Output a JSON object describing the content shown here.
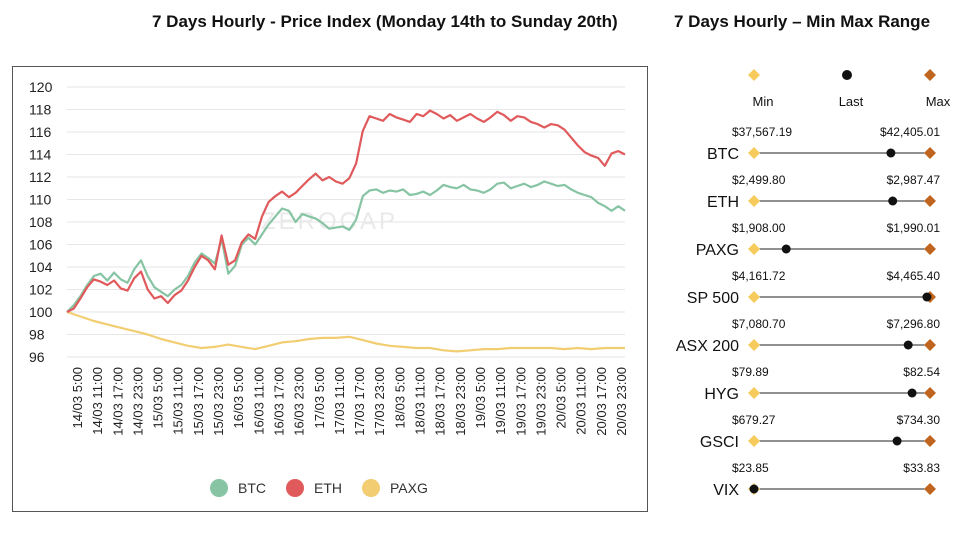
{
  "titles": {
    "left": "7 Days Hourly - Price Index (Monday 14th to Sunday 20th)",
    "right": "7 Days Hourly – Min Max Range"
  },
  "watermark": "ZEROCAP",
  "colors": {
    "btc": "#87c4a4",
    "eth": "#e05a5c",
    "paxg": "#f2cd72",
    "min_marker": "#f6cb5c",
    "last_marker": "#111111",
    "max_marker": "#c0651f",
    "grid": "#e6e6e6"
  },
  "chart_data": [
    {
      "type": "line",
      "title": "7 Days Hourly - Price Index (Monday 14th to Sunday 20th)",
      "xlabel": "",
      "ylabel": "",
      "ylim": [
        96,
        120
      ],
      "yticks": [
        96,
        98,
        100,
        102,
        104,
        106,
        108,
        110,
        112,
        114,
        116,
        118,
        120
      ],
      "x_tick_labels": [
        "14/03 5:00",
        "14/03 11:00",
        "14/03 17:00",
        "14/03 23:00",
        "15/03 5:00",
        "15/03 11:00",
        "15/03 17:00",
        "15/03 23:00",
        "16/03 5:00",
        "16/03 11:00",
        "16/03 17:00",
        "16/03 23:00",
        "17/03 5:00",
        "17/03 11:00",
        "17/03 17:00",
        "17/03 23:00",
        "18/03 5:00",
        "18/03 11:00",
        "18/03 17:00",
        "18/03 23:00",
        "19/03 5:00",
        "19/03 11:00",
        "19/03 17:00",
        "19/03 23:00",
        "20/03 5:00",
        "20/03 11:00",
        "20/03 17:00",
        "20/03 23:00"
      ],
      "x_hours_range": [
        0,
        166
      ],
      "legend_position": "bottom",
      "series": [
        {
          "name": "BTC",
          "x_hours": [
            0,
            2,
            4,
            6,
            8,
            10,
            12,
            14,
            16,
            18,
            20,
            22,
            24,
            26,
            28,
            30,
            32,
            34,
            36,
            38,
            40,
            42,
            44,
            46,
            48,
            50,
            52,
            54,
            56,
            58,
            60,
            62,
            64,
            66,
            68,
            70,
            72,
            74,
            76,
            78,
            80,
            82,
            84,
            86,
            88,
            90,
            92,
            94,
            96,
            98,
            100,
            102,
            104,
            106,
            108,
            110,
            112,
            114,
            116,
            118,
            120,
            122,
            124,
            126,
            128,
            130,
            132,
            134,
            136,
            138,
            140,
            142,
            144,
            146,
            148,
            150,
            152,
            154,
            156,
            158,
            160,
            162,
            164,
            166
          ],
          "values": [
            100.0,
            100.6,
            101.4,
            102.4,
            103.2,
            103.4,
            102.8,
            103.5,
            102.9,
            102.6,
            103.8,
            104.6,
            103.2,
            102.2,
            101.8,
            101.4,
            102.0,
            102.4,
            103.2,
            104.4,
            105.2,
            104.8,
            104.3,
            106.5,
            103.4,
            104.1,
            106.0,
            106.6,
            106.0,
            106.9,
            107.8,
            108.5,
            109.2,
            109.0,
            108.0,
            108.7,
            108.5,
            108.3,
            107.9,
            107.4,
            107.5,
            107.6,
            107.3,
            108.2,
            110.3,
            110.8,
            110.9,
            110.6,
            110.8,
            110.7,
            110.9,
            110.4,
            110.5,
            110.7,
            110.4,
            110.8,
            111.3,
            111.1,
            111.0,
            111.3,
            110.9,
            110.8,
            110.6,
            110.9,
            111.4,
            111.5,
            111.0,
            111.2,
            111.4,
            111.1,
            111.3,
            111.6,
            111.4,
            111.2,
            111.3,
            110.9,
            110.6,
            110.4,
            110.2,
            109.7,
            109.4,
            109.0,
            109.4,
            109.0
          ]
        },
        {
          "name": "ETH",
          "x_hours": [
            0,
            2,
            4,
            6,
            8,
            10,
            12,
            14,
            16,
            18,
            20,
            22,
            24,
            26,
            28,
            30,
            32,
            34,
            36,
            38,
            40,
            42,
            44,
            46,
            48,
            50,
            52,
            54,
            56,
            58,
            60,
            62,
            64,
            66,
            68,
            70,
            72,
            74,
            76,
            78,
            80,
            82,
            84,
            86,
            88,
            90,
            92,
            94,
            96,
            98,
            100,
            102,
            104,
            106,
            108,
            110,
            112,
            114,
            116,
            118,
            120,
            122,
            124,
            126,
            128,
            130,
            132,
            134,
            136,
            138,
            140,
            142,
            144,
            146,
            148,
            150,
            152,
            154,
            156,
            158,
            160,
            162,
            164,
            166
          ],
          "values": [
            100.0,
            100.3,
            101.2,
            102.2,
            102.9,
            102.7,
            102.4,
            102.8,
            102.1,
            101.9,
            103.0,
            103.6,
            102.0,
            101.2,
            101.4,
            100.8,
            101.5,
            101.9,
            102.8,
            104.0,
            105.0,
            104.6,
            103.8,
            106.8,
            104.2,
            104.6,
            106.2,
            106.9,
            106.5,
            108.5,
            109.8,
            110.3,
            110.7,
            110.2,
            110.6,
            111.2,
            111.8,
            112.3,
            111.7,
            112.0,
            111.6,
            111.4,
            111.9,
            113.2,
            116.1,
            117.4,
            117.2,
            117.0,
            117.6,
            117.3,
            117.1,
            116.9,
            117.6,
            117.4,
            117.9,
            117.6,
            117.2,
            117.5,
            117.0,
            117.3,
            117.6,
            117.2,
            116.9,
            117.3,
            117.8,
            117.5,
            117.0,
            117.4,
            117.3,
            116.9,
            116.7,
            116.4,
            116.7,
            116.6,
            116.2,
            115.5,
            114.8,
            114.2,
            113.9,
            113.7,
            113.0,
            114.1,
            114.3,
            114.0
          ]
        },
        {
          "name": "PAXG",
          "x_hours": [
            0,
            4,
            8,
            12,
            16,
            20,
            24,
            28,
            32,
            36,
            40,
            44,
            48,
            52,
            56,
            60,
            64,
            68,
            72,
            76,
            80,
            84,
            88,
            92,
            96,
            100,
            104,
            108,
            112,
            116,
            120,
            124,
            128,
            132,
            136,
            140,
            144,
            148,
            152,
            156,
            160,
            164,
            166
          ],
          "values": [
            100.0,
            99.6,
            99.2,
            98.9,
            98.6,
            98.3,
            98.0,
            97.6,
            97.3,
            97.0,
            96.8,
            96.9,
            97.1,
            96.9,
            96.7,
            97.0,
            97.3,
            97.4,
            97.6,
            97.7,
            97.7,
            97.8,
            97.5,
            97.2,
            97.0,
            96.9,
            96.8,
            96.8,
            96.6,
            96.5,
            96.6,
            96.7,
            96.7,
            96.8,
            96.8,
            96.8,
            96.8,
            96.7,
            96.8,
            96.7,
            96.8,
            96.8,
            96.8
          ]
        }
      ]
    },
    {
      "type": "range",
      "title": "7 Days Hourly – Min Max Range",
      "legend": [
        "Min",
        "Last",
        "Max"
      ],
      "assets": [
        {
          "name": "BTC",
          "min": 37567.19,
          "max": 42405.01,
          "last": 41330.0,
          "min_label": "$37,567.19",
          "max_label": "$42,405.01"
        },
        {
          "name": "ETH",
          "min": 2499.8,
          "max": 2987.47,
          "last": 2884.0,
          "min_label": "$2,499.80",
          "max_label": "$2,987.47"
        },
        {
          "name": "PAXG",
          "min": 1908.0,
          "max": 1990.01,
          "last": 1923.0,
          "min_label": "$1,908.00",
          "max_label": "$1,990.01"
        },
        {
          "name": "SP 500",
          "min": 4161.72,
          "max": 4465.4,
          "last": 4460.0,
          "min_label": "$4,161.72",
          "max_label": "$4,465.40"
        },
        {
          "name": "ASX 200",
          "min": 7080.7,
          "max": 7296.8,
          "last": 7270.0,
          "min_label": "$7,080.70",
          "max_label": "$7,296.80"
        },
        {
          "name": "HYG",
          "min": 79.89,
          "max": 82.54,
          "last": 82.27,
          "min_label": "$79.89",
          "max_label": "$82.54"
        },
        {
          "name": "GSCI",
          "min": 679.27,
          "max": 734.3,
          "last": 724.0,
          "min_label": "$679.27",
          "max_label": "$734.30"
        },
        {
          "name": "VIX",
          "min": 23.85,
          "max": 33.83,
          "last": 23.85,
          "min_label": "$23.85",
          "max_label": "$33.83"
        }
      ]
    }
  ]
}
